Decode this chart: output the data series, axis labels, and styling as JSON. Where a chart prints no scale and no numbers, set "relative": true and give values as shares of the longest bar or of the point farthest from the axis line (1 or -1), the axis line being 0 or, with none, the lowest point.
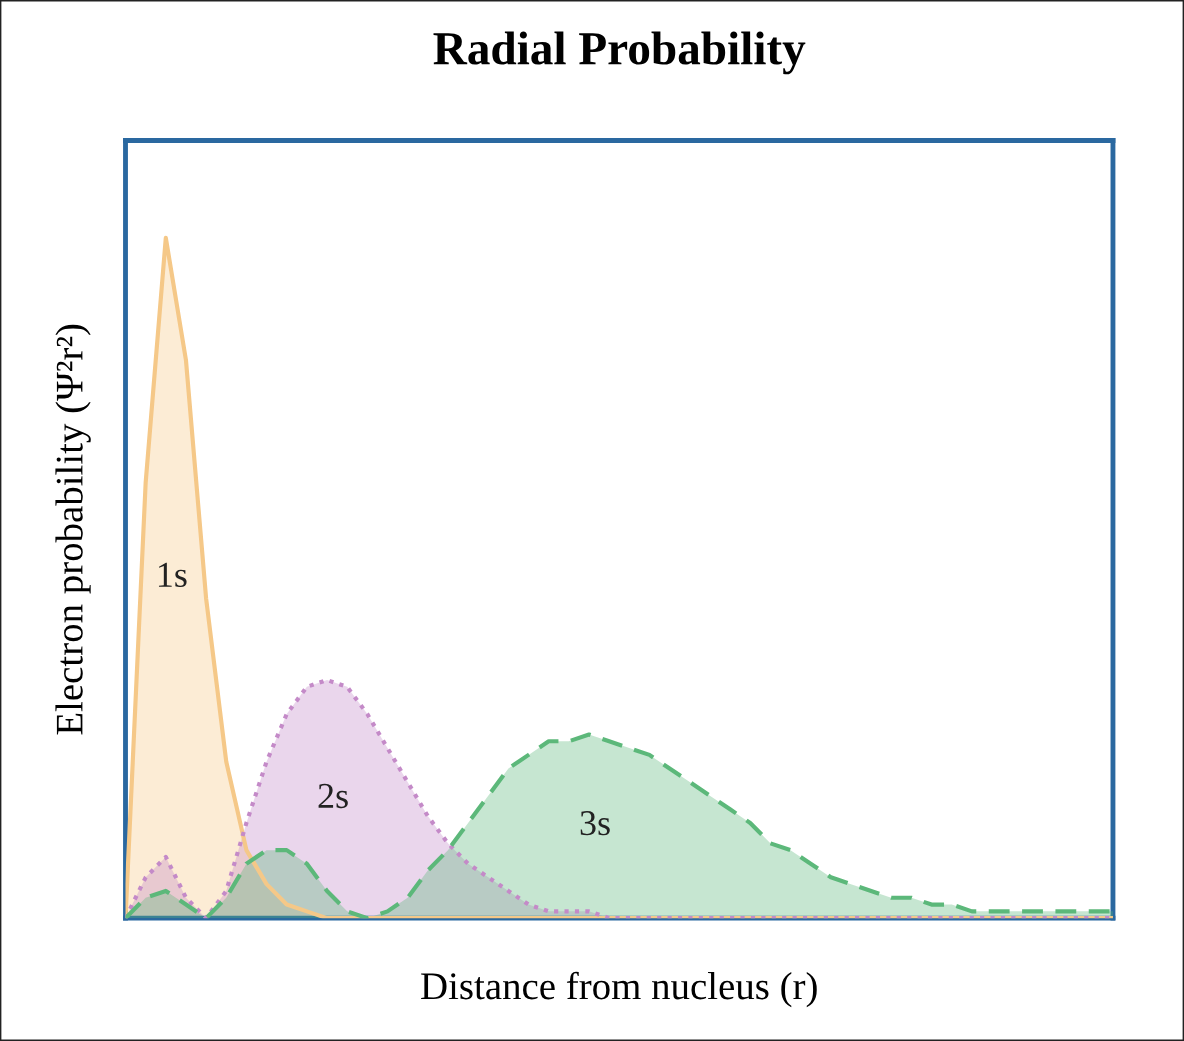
{
  "chart_data": {
    "type": "area",
    "title": "Radial Probability",
    "xlabel": "Distance from nucleus (r)",
    "ylabel": "Electron probability (Ψ²r²)",
    "relative": true,
    "categories": [
      null,
      null,
      null,
      null,
      null,
      null,
      null,
      null,
      null,
      null,
      null,
      null,
      null,
      null,
      null,
      null,
      null,
      null,
      null,
      null,
      null,
      null,
      null,
      null,
      null,
      null,
      null,
      null,
      null,
      null,
      null,
      null,
      null,
      null,
      null,
      null,
      null,
      null,
      null,
      null,
      null,
      null,
      null,
      null,
      null,
      null,
      null,
      null,
      null,
      null
    ],
    "series": [
      {
        "name": "1s",
        "color": "#f5c888",
        "line_style": "solid",
        "values": [
          0,
          0.64,
          1.0,
          0.82,
          0.47,
          0.23,
          0.1,
          0.05,
          0.02,
          0.01,
          0,
          0,
          0,
          0,
          0,
          0,
          0,
          0,
          0,
          0,
          0,
          0,
          0,
          0,
          0,
          0,
          0,
          0,
          0,
          0,
          0,
          0,
          0,
          0,
          0,
          0,
          0,
          0,
          0,
          0,
          0,
          0,
          0,
          0,
          0,
          0,
          0,
          0,
          0,
          0
        ]
      },
      {
        "name": "2s",
        "color": "#c48ac8",
        "line_style": "dotted",
        "values": [
          0,
          0.06,
          0.09,
          0.03,
          0,
          0.04,
          0.14,
          0.23,
          0.3,
          0.34,
          0.35,
          0.34,
          0.3,
          0.25,
          0.2,
          0.15,
          0.11,
          0.08,
          0.06,
          0.04,
          0.02,
          0.01,
          0.01,
          0.01,
          0,
          0,
          0,
          0,
          0,
          0,
          0,
          0,
          0,
          0,
          0,
          0,
          0,
          0,
          0,
          0,
          0,
          0,
          0,
          0,
          0,
          0,
          0,
          0,
          0,
          0
        ]
      },
      {
        "name": "3s",
        "color": "#5cb87a",
        "line_style": "dashed",
        "values": [
          0,
          0.03,
          0.04,
          0.02,
          0,
          0.03,
          0.08,
          0.1,
          0.1,
          0.08,
          0.04,
          0.01,
          0,
          0.01,
          0.03,
          0.07,
          0.1,
          0.14,
          0.18,
          0.22,
          0.24,
          0.26,
          0.26,
          0.27,
          0.26,
          0.25,
          0.24,
          0.22,
          0.2,
          0.18,
          0.16,
          0.14,
          0.11,
          0.1,
          0.08,
          0.06,
          0.05,
          0.04,
          0.03,
          0.03,
          0.02,
          0.02,
          0.01,
          0.01,
          0.01,
          0.01,
          0.01,
          0.01,
          0.01,
          0.01
        ]
      }
    ]
  }
}
